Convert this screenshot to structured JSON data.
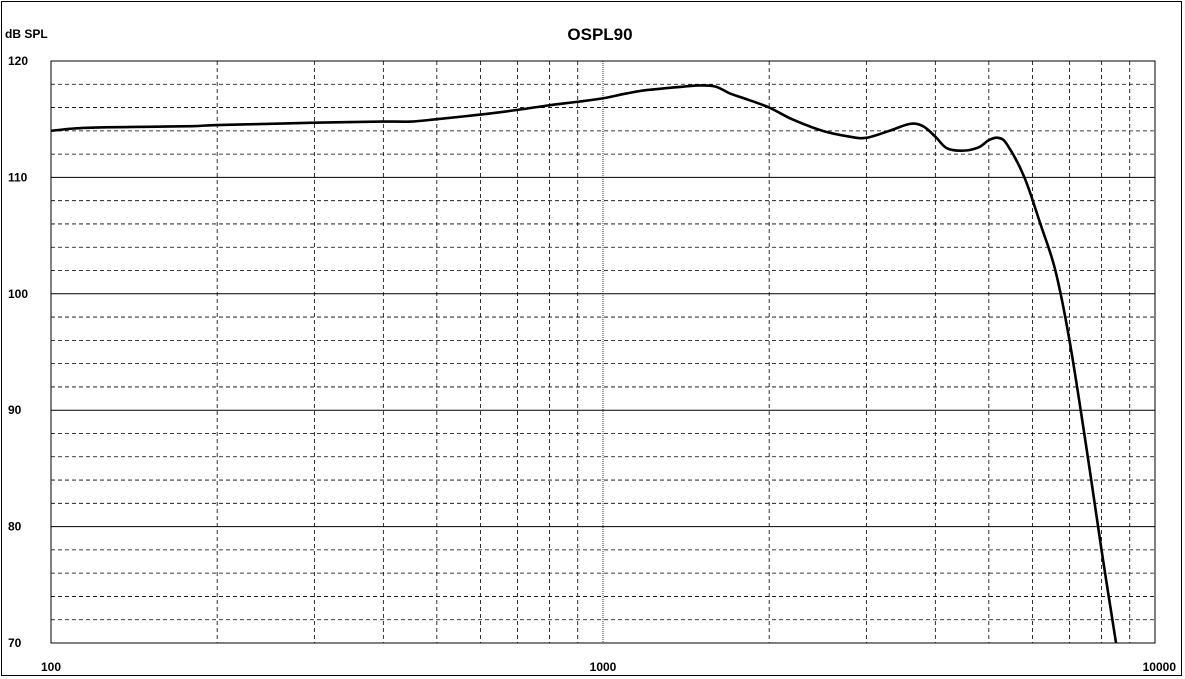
{
  "chart_data": {
    "type": "line",
    "title": "OSPL90",
    "ylabel": "dB SPL",
    "xlabel": "",
    "x_scale": "log",
    "xlim": [
      100,
      10000
    ],
    "ylim": [
      70,
      120
    ],
    "x_tick_labels": [
      "100",
      "1000",
      "10000"
    ],
    "y_tick_labels": [
      "120",
      "110",
      "100",
      "90",
      "80",
      "70"
    ],
    "grid": true,
    "legend": "none",
    "line_color": "#000000",
    "series": [
      {
        "x": [
          100,
          110,
          125,
          150,
          180,
          200,
          250,
          300,
          350,
          400,
          450,
          500,
          600,
          700,
          800,
          900,
          1000,
          1100,
          1200,
          1400,
          1500,
          1600,
          1700,
          1800,
          2000,
          2200,
          2500,
          2800,
          3000,
          3300,
          3600,
          3800,
          4000,
          4200,
          4500,
          4800,
          5000,
          5200,
          5400,
          5800,
          6200,
          6600,
          7000,
          7500,
          8000,
          8500
        ],
        "y": [
          114.0,
          114.2,
          114.3,
          114.35,
          114.4,
          114.5,
          114.6,
          114.7,
          114.75,
          114.8,
          114.8,
          115.0,
          115.4,
          115.8,
          116.2,
          116.5,
          116.8,
          117.2,
          117.5,
          117.8,
          117.9,
          117.8,
          117.2,
          116.8,
          116.0,
          115.0,
          114.0,
          113.5,
          113.4,
          114.0,
          114.6,
          114.4,
          113.5,
          112.5,
          112.3,
          112.6,
          113.2,
          113.4,
          112.8,
          110.0,
          106.0,
          102.0,
          96.0,
          87.0,
          78.0,
          70.0
        ]
      }
    ]
  }
}
